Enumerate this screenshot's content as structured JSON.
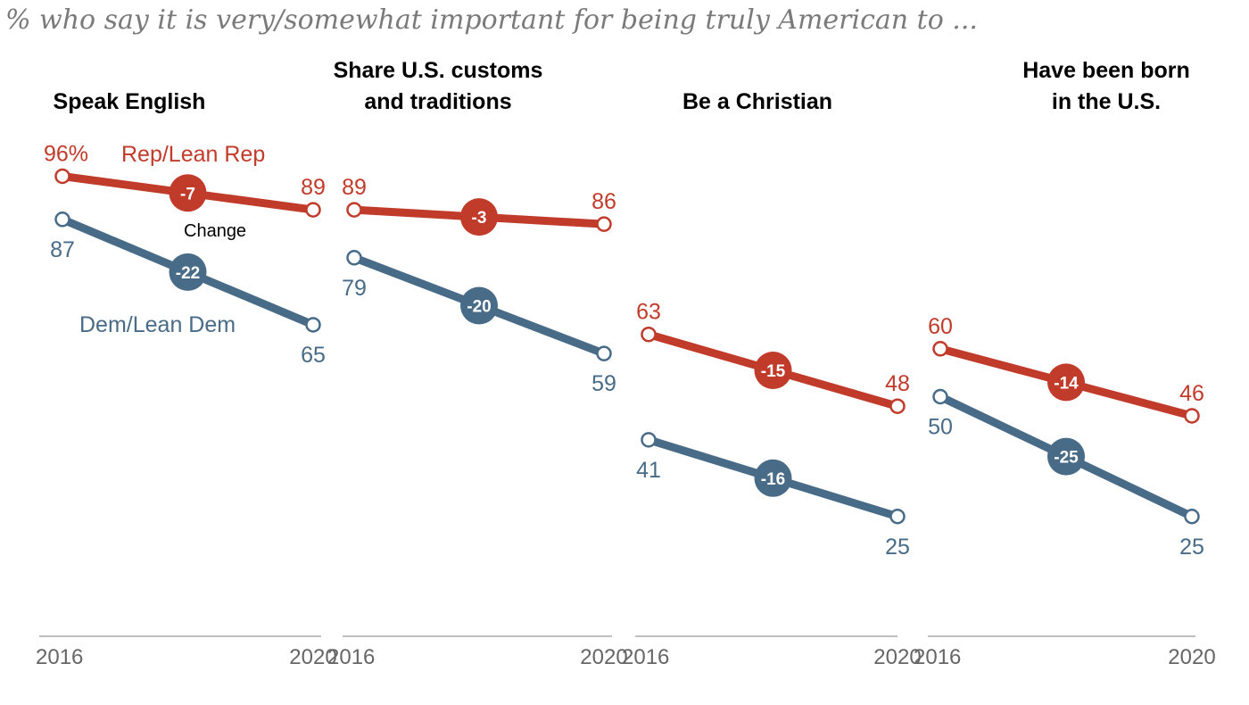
{
  "subtitle": "% who say it is very/somewhat important for being truly American to ...",
  "colors": {
    "rep": "#c13b2b",
    "dem": "#486b87",
    "axis": "#999999"
  },
  "legend": {
    "rep_label": "Rep/Lean Rep",
    "dem_label": "Dem/Lean Dem",
    "change_label": "Change"
  },
  "chart_data": {
    "type": "line",
    "x": [
      "2016",
      "2020"
    ],
    "ylim": [
      0,
      100
    ],
    "panels": [
      {
        "title": [
          "Speak English"
        ],
        "series": [
          {
            "name": "Rep/Lean Rep",
            "values": [
              96,
              89
            ],
            "value_labels": [
              "96%",
              "89"
            ],
            "change": "-7"
          },
          {
            "name": "Dem/Lean Dem",
            "values": [
              87,
              65
            ],
            "value_labels": [
              "87",
              "65"
            ],
            "change": "-22"
          }
        ]
      },
      {
        "title": [
          "Share U.S. customs",
          "and traditions"
        ],
        "series": [
          {
            "name": "Rep/Lean Rep",
            "values": [
              89,
              86
            ],
            "value_labels": [
              "89",
              "86"
            ],
            "change": "-3"
          },
          {
            "name": "Dem/Lean Dem",
            "values": [
              79,
              59
            ],
            "value_labels": [
              "79",
              "59"
            ],
            "change": "-20"
          }
        ]
      },
      {
        "title": [
          "Be a Christian"
        ],
        "series": [
          {
            "name": "Rep/Lean Rep",
            "values": [
              63,
              48
            ],
            "value_labels": [
              "63",
              "48"
            ],
            "change": "-15"
          },
          {
            "name": "Dem/Lean Dem",
            "values": [
              41,
              25
            ],
            "value_labels": [
              "41",
              "25"
            ],
            "change": "-16"
          }
        ]
      },
      {
        "title": [
          "Have been born",
          "in the U.S."
        ],
        "series": [
          {
            "name": "Rep/Lean Rep",
            "values": [
              60,
              46
            ],
            "value_labels": [
              "60",
              "46"
            ],
            "change": "-14"
          },
          {
            "name": "Dem/Lean Dem",
            "values": [
              50,
              25
            ],
            "value_labels": [
              "50",
              "25"
            ],
            "change": "-25"
          }
        ]
      }
    ]
  }
}
